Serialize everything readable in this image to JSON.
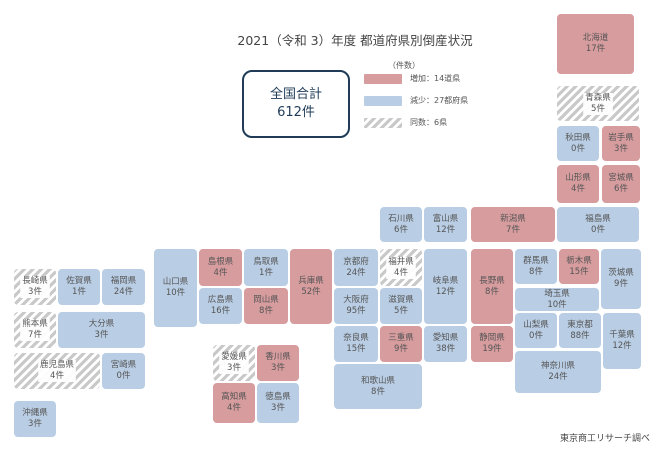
{
  "title": "2021（令和 3）年度 都道府県別倒産状況",
  "total": {
    "label": "全国合計",
    "value": "612件"
  },
  "legend": {
    "unit": "（件数）",
    "items": [
      {
        "key": "inc",
        "label": "増加：14道県",
        "color": "#d69c9e"
      },
      {
        "key": "dec",
        "label": "減少：27都府県",
        "color": "#b9cde4"
      },
      {
        "key": "same",
        "label": "同数：6県",
        "color": "#c9c9c9"
      }
    ]
  },
  "source": "東京商工リサーチ調べ",
  "chart_data": {
    "type": "table",
    "title": "2021（令和 3）年度 都道府県別倒産状況",
    "unit": "件数",
    "total": 612,
    "categories": [
      "inc",
      "dec",
      "same"
    ],
    "prefectures": [
      {
        "name": "北海道",
        "count": 17,
        "change": "inc"
      },
      {
        "name": "青森県",
        "count": 5,
        "change": "same"
      },
      {
        "name": "秋田県",
        "count": 0,
        "change": "dec"
      },
      {
        "name": "岩手県",
        "count": 3,
        "change": "inc"
      },
      {
        "name": "山形県",
        "count": 4,
        "change": "inc"
      },
      {
        "name": "宮城県",
        "count": 6,
        "change": "inc"
      },
      {
        "name": "福島県",
        "count": 0,
        "change": "dec"
      },
      {
        "name": "新潟県",
        "count": 7,
        "change": "inc"
      },
      {
        "name": "石川県",
        "count": 6,
        "change": "dec"
      },
      {
        "name": "富山県",
        "count": 12,
        "change": "dec"
      },
      {
        "name": "福井県",
        "count": 4,
        "change": "same"
      },
      {
        "name": "長野県",
        "count": 8,
        "change": "inc"
      },
      {
        "name": "群馬県",
        "count": 8,
        "change": "dec"
      },
      {
        "name": "栃木県",
        "count": 15,
        "change": "inc"
      },
      {
        "name": "茨城県",
        "count": 9,
        "change": "dec"
      },
      {
        "name": "埼玉県",
        "count": 10,
        "change": "dec"
      },
      {
        "name": "山梨県",
        "count": 0,
        "change": "dec"
      },
      {
        "name": "東京都",
        "count": 88,
        "change": "dec"
      },
      {
        "name": "千葉県",
        "count": 12,
        "change": "dec"
      },
      {
        "name": "神奈川県",
        "count": 24,
        "change": "dec"
      },
      {
        "name": "岐阜県",
        "count": 12,
        "change": "dec"
      },
      {
        "name": "静岡県",
        "count": 19,
        "change": "inc"
      },
      {
        "name": "愛知県",
        "count": 38,
        "change": "dec"
      },
      {
        "name": "三重県",
        "count": 9,
        "change": "inc"
      },
      {
        "name": "滋賀県",
        "count": 5,
        "change": "dec"
      },
      {
        "name": "京都府",
        "count": 24,
        "change": "dec"
      },
      {
        "name": "大阪府",
        "count": 95,
        "change": "dec"
      },
      {
        "name": "奈良県",
        "count": 15,
        "change": "dec"
      },
      {
        "name": "和歌山県",
        "count": 8,
        "change": "dec"
      },
      {
        "name": "兵庫県",
        "count": 52,
        "change": "inc"
      },
      {
        "name": "鳥取県",
        "count": 1,
        "change": "dec"
      },
      {
        "name": "島根県",
        "count": 4,
        "change": "inc"
      },
      {
        "name": "岡山県",
        "count": 8,
        "change": "inc"
      },
      {
        "name": "広島県",
        "count": 16,
        "change": "dec"
      },
      {
        "name": "山口県",
        "count": 10,
        "change": "dec"
      },
      {
        "name": "香川県",
        "count": 3,
        "change": "inc"
      },
      {
        "name": "愛媛県",
        "count": 3,
        "change": "same"
      },
      {
        "name": "徳島県",
        "count": 3,
        "change": "dec"
      },
      {
        "name": "高知県",
        "count": 4,
        "change": "inc"
      },
      {
        "name": "福岡県",
        "count": 24,
        "change": "dec"
      },
      {
        "name": "佐賀県",
        "count": 1,
        "change": "dec"
      },
      {
        "name": "長崎県",
        "count": 3,
        "change": "same"
      },
      {
        "name": "熊本県",
        "count": 7,
        "change": "same"
      },
      {
        "name": "大分県",
        "count": 3,
        "change": "dec"
      },
      {
        "name": "宮崎県",
        "count": 0,
        "change": "dec"
      },
      {
        "name": "鹿児島県",
        "count": 4,
        "change": "same"
      },
      {
        "name": "沖縄県",
        "count": 3,
        "change": "dec"
      }
    ]
  }
}
